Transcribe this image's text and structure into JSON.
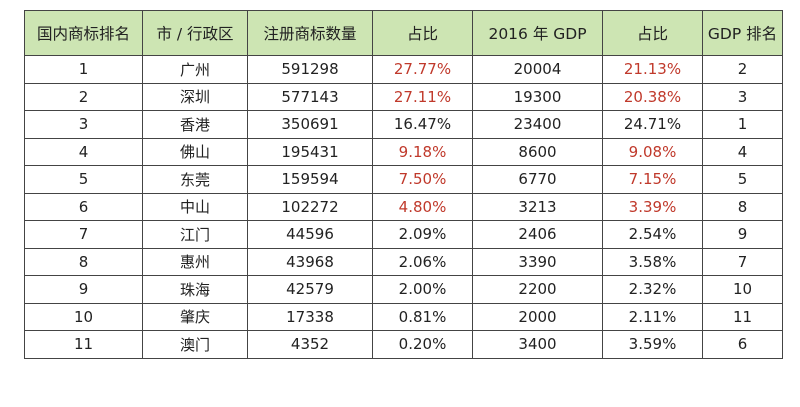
{
  "table": {
    "headers": [
      "国内商标排名",
      "市 / 行政区",
      "注册商标数量",
      "占比",
      "2016 年 GDP",
      "占比",
      "GDP 排名"
    ],
    "rows": [
      {
        "rank": "1",
        "city": "广州",
        "count": "591298",
        "share": "27.77%",
        "share_red": true,
        "gdp": "20004",
        "gdp_share": "21.13%",
        "gdp_share_red": true,
        "gdp_rank": "2"
      },
      {
        "rank": "2",
        "city": "深圳",
        "count": "577143",
        "share": "27.11%",
        "share_red": true,
        "gdp": "19300",
        "gdp_share": "20.38%",
        "gdp_share_red": true,
        "gdp_rank": "3"
      },
      {
        "rank": "3",
        "city": "香港",
        "count": "350691",
        "share": "16.47%",
        "share_red": false,
        "gdp": "23400",
        "gdp_share": "24.71%",
        "gdp_share_red": false,
        "gdp_rank": "1"
      },
      {
        "rank": "4",
        "city": "佛山",
        "count": "195431",
        "share": "9.18%",
        "share_red": true,
        "gdp": "8600",
        "gdp_share": "9.08%",
        "gdp_share_red": true,
        "gdp_rank": "4"
      },
      {
        "rank": "5",
        "city": "东莞",
        "count": "159594",
        "share": "7.50%",
        "share_red": true,
        "gdp": "6770",
        "gdp_share": "7.15%",
        "gdp_share_red": true,
        "gdp_rank": "5"
      },
      {
        "rank": "6",
        "city": "中山",
        "count": "102272",
        "share": "4.80%",
        "share_red": true,
        "gdp": "3213",
        "gdp_share": "3.39%",
        "gdp_share_red": true,
        "gdp_rank": "8"
      },
      {
        "rank": "7",
        "city": "江门",
        "count": "44596",
        "share": "2.09%",
        "share_red": false,
        "gdp": "2406",
        "gdp_share": "2.54%",
        "gdp_share_red": false,
        "gdp_rank": "9"
      },
      {
        "rank": "8",
        "city": "惠州",
        "count": "43968",
        "share": "2.06%",
        "share_red": false,
        "gdp": "3390",
        "gdp_share": "3.58%",
        "gdp_share_red": false,
        "gdp_rank": "7"
      },
      {
        "rank": "9",
        "city": "珠海",
        "count": "42579",
        "share": "2.00%",
        "share_red": false,
        "gdp": "2200",
        "gdp_share": "2.32%",
        "gdp_share_red": false,
        "gdp_rank": "10"
      },
      {
        "rank": "10",
        "city": "肇庆",
        "count": "17338",
        "share": "0.81%",
        "share_red": false,
        "gdp": "2000",
        "gdp_share": "2.11%",
        "gdp_share_red": false,
        "gdp_rank": "11"
      },
      {
        "rank": "11",
        "city": "澳门",
        "count": "4352",
        "share": "0.20%",
        "share_red": false,
        "gdp": "3400",
        "gdp_share": "3.59%",
        "gdp_share_red": false,
        "gdp_rank": "6"
      }
    ]
  },
  "colors": {
    "header_bg": "#cde5b3",
    "highlight_text": "#c0392b",
    "border": "#444444"
  }
}
